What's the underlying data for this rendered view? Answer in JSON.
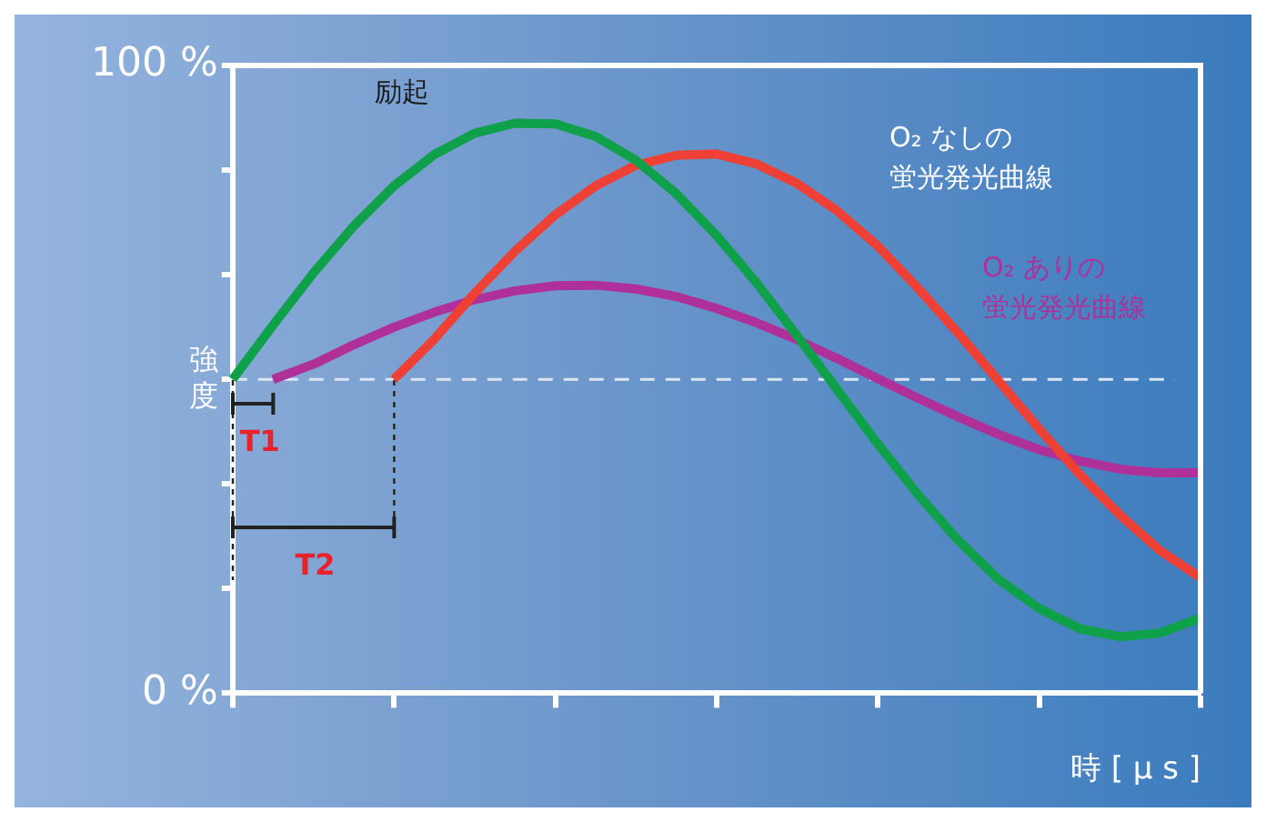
{
  "chart_data": {
    "type": "line",
    "xlabel": "時 [ μ s ]",
    "ylabel": "強度",
    "categories": [
      null,
      null,
      null,
      null,
      null,
      null,
      null,
      null,
      null,
      null,
      null,
      null,
      null,
      null,
      null,
      null,
      null,
      null,
      null,
      null,
      null,
      null,
      null,
      null,
      null
    ],
    "ylim": [
      0,
      100
    ],
    "yticks": [
      {
        "value": 0,
        "label": "0 %"
      },
      {
        "value": 16.67,
        "label": null
      },
      {
        "value": 33.33,
        "label": null
      },
      {
        "value": 50,
        "label": null
      },
      {
        "value": 66.67,
        "label": null
      },
      {
        "value": 83.33,
        "label": null
      },
      {
        "value": 100,
        "label": "100 %"
      }
    ],
    "grid": false,
    "legend": false,
    "marker": "none",
    "line_style": "solid",
    "ref_lines": [
      {
        "axis": "y",
        "value": 50,
        "color": "#dde6f0",
        "line_style": "dashed"
      }
    ],
    "annotations": [
      "T1",
      "T2"
    ],
    "series": [
      {
        "name": "励起",
        "color": "#0fa04a",
        "values": [
          50,
          58.6,
          66.9,
          74.4,
          80.8,
          85.8,
          89.2,
          90.8,
          90.7,
          88.7,
          84.9,
          79.6,
          72.9,
          65.3,
          56.9,
          48.3,
          39.7,
          31.6,
          24.3,
          18.1,
          13.5,
          10.3,
          9,
          9.6,
          12
        ]
      },
      {
        "name": "O₂ なしの蛍光発光曲線",
        "color": "#ee4035",
        "values": [
          null,
          null,
          null,
          null,
          50,
          56.4,
          63.7,
          70.4,
          76.2,
          80.8,
          84.1,
          85.7,
          85.9,
          84.3,
          81.2,
          76.8,
          71.2,
          64.5,
          57.3,
          49.7,
          42.1,
          34.9,
          28.4,
          22.7,
          18.4
        ]
      },
      {
        "name": "O₂ ありの蛍光発光曲線",
        "color": "#b0309a",
        "values": [
          null,
          50,
          52.4,
          55.5,
          58.3,
          60.7,
          62.7,
          64.1,
          64.9,
          65,
          64.4,
          63.2,
          61.3,
          59,
          56.3,
          53.3,
          50.1,
          47,
          44,
          41.2,
          38.8,
          37,
          35.7,
          35.1,
          35.1
        ]
      }
    ]
  }
}
